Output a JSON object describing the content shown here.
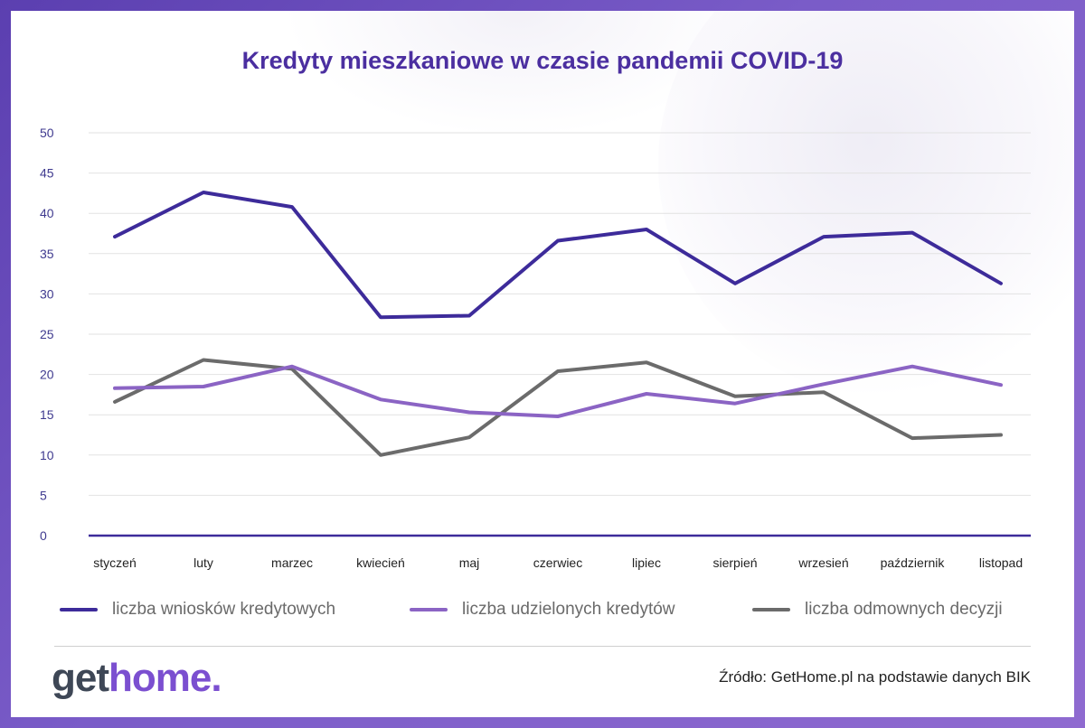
{
  "title": "Kredyty mieszkaniowe w czasie pandemii COVID-19",
  "legend": [
    {
      "label": "liczba wniosków kredytowych",
      "color": "#3d2b9a"
    },
    {
      "label": "liczba udzielonych kredytów",
      "color": "#8b64c4"
    },
    {
      "label": "liczba odmownych decyzji",
      "color": "#6b6b6b"
    }
  ],
  "logo": {
    "part1": "get",
    "part2": "home",
    "part3": "."
  },
  "source": "Źródło: GetHome.pl na podstawie danych BIK",
  "colors": {
    "title": "#4b2fa0",
    "axis": "#3d2b9a",
    "grid": "#e2e2e2",
    "background": "#6a4cbc"
  },
  "chart_data": {
    "type": "line",
    "title": "Kredyty mieszkaniowe w czasie pandemii COVID-19",
    "xlabel": "",
    "ylabel": "",
    "ylim": [
      0,
      50
    ],
    "yticks": [
      0,
      5,
      10,
      15,
      20,
      25,
      30,
      35,
      40,
      45,
      50
    ],
    "grid": true,
    "legend_position": "bottom",
    "categories": [
      "styczeń",
      "luty",
      "marzec",
      "kwiecień",
      "maj",
      "czerwiec",
      "lipiec",
      "sierpień",
      "wrzesień",
      "październik",
      "listopad"
    ],
    "series": [
      {
        "name": "liczba wniosków kredytowych",
        "color": "#3d2b9a",
        "values": [
          37.1,
          42.6,
          40.8,
          27.1,
          27.3,
          36.6,
          38.0,
          31.3,
          37.1,
          37.6,
          31.3
        ]
      },
      {
        "name": "liczba udzielonych kredytów",
        "color": "#8b64c4",
        "values": [
          18.3,
          18.5,
          21.0,
          16.9,
          15.3,
          14.8,
          17.6,
          16.4,
          18.8,
          21.0,
          18.7
        ]
      },
      {
        "name": "liczba odmownych decyzji",
        "color": "#6b6b6b",
        "values": [
          16.6,
          21.8,
          20.7,
          10.0,
          12.2,
          20.4,
          21.5,
          17.3,
          17.8,
          12.1,
          12.5
        ]
      }
    ]
  }
}
